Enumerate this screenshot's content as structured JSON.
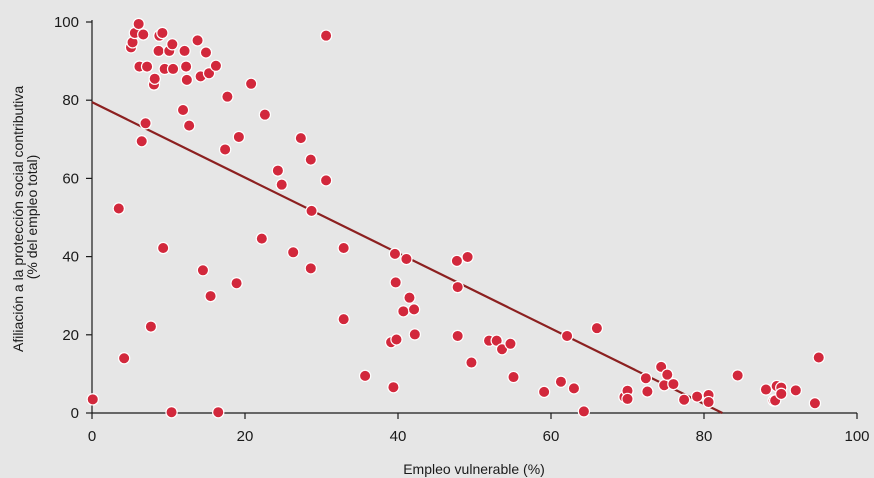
{
  "chart_data": {
    "type": "scatter",
    "title": "",
    "xlabel": "Empleo vulnerable (%)",
    "ylabel_lines": [
      "Afiliación a la protección social contributiva",
      "(% del empleo total)"
    ],
    "xlim": [
      0,
      100
    ],
    "ylim": [
      0,
      100
    ],
    "xticks": [
      0,
      20,
      40,
      60,
      80,
      100
    ],
    "yticks": [
      0,
      20,
      40,
      60,
      80,
      100
    ],
    "grid": false,
    "legend": "none",
    "colors": {
      "background": "#e6e6e6",
      "point_fill": "#d2283c",
      "point_stroke": "#ffffff",
      "trend_line": "#8c2020",
      "axis": "#1a1a1a"
    },
    "trend_line": {
      "x": [
        0,
        82.4
      ],
      "y": [
        79.5,
        0
      ]
    },
    "points": [
      [
        0.1,
        3.5
      ],
      [
        3.5,
        52.3
      ],
      [
        4.2,
        14
      ],
      [
        5.1,
        93.5
      ],
      [
        5.3,
        94.8
      ],
      [
        5.6,
        97.2
      ],
      [
        6.1,
        99.5
      ],
      [
        6.2,
        88.6
      ],
      [
        6.5,
        69.5
      ],
      [
        6.7,
        96.8
      ],
      [
        7,
        74.1
      ],
      [
        7.2,
        88.6
      ],
      [
        7.7,
        22.1
      ],
      [
        8.1,
        84
      ],
      [
        8.2,
        85.5
      ],
      [
        8.7,
        92.6
      ],
      [
        8.8,
        96.5
      ],
      [
        9.2,
        97.2
      ],
      [
        9.3,
        42.2
      ],
      [
        9.5,
        88
      ],
      [
        10.1,
        92.6
      ],
      [
        10.4,
        0.2
      ],
      [
        10.5,
        94.3
      ],
      [
        10.6,
        88
      ],
      [
        11.9,
        77.5
      ],
      [
        12.1,
        92.6
      ],
      [
        12.3,
        88.6
      ],
      [
        12.4,
        85.2
      ],
      [
        12.7,
        73.5
      ],
      [
        13.8,
        95.3
      ],
      [
        14.2,
        86.1
      ],
      [
        14.5,
        36.5
      ],
      [
        14.9,
        92.2
      ],
      [
        15.3,
        86.9
      ],
      [
        15.5,
        29.9
      ],
      [
        16.2,
        88.8
      ],
      [
        16.5,
        0.2
      ],
      [
        17.4,
        67.4
      ],
      [
        17.7,
        80.9
      ],
      [
        18.9,
        33.2
      ],
      [
        19.2,
        70.6
      ],
      [
        20.8,
        84.2
      ],
      [
        22.2,
        44.6
      ],
      [
        22.6,
        76.3
      ],
      [
        24.3,
        62
      ],
      [
        24.8,
        58.4
      ],
      [
        26.3,
        41.1
      ],
      [
        27.3,
        70.3
      ],
      [
        28.6,
        64.8
      ],
      [
        28.6,
        37
      ],
      [
        28.7,
        51.7
      ],
      [
        30.6,
        59.5
      ],
      [
        30.6,
        96.5
      ],
      [
        32.9,
        42.2
      ],
      [
        32.9,
        24
      ],
      [
        35.7,
        9.5
      ],
      [
        39.1,
        18.1
      ],
      [
        39.4,
        6.6
      ],
      [
        39.6,
        40.7
      ],
      [
        39.7,
        33.4
      ],
      [
        39.8,
        18.8
      ],
      [
        40.7,
        26
      ],
      [
        41.1,
        39.4
      ],
      [
        41.5,
        29.5
      ],
      [
        42.1,
        26.5
      ],
      [
        42.2,
        20.1
      ],
      [
        47.7,
        38.9
      ],
      [
        47.8,
        19.7
      ],
      [
        47.8,
        32.2
      ],
      [
        49.1,
        39.9
      ],
      [
        49.6,
        12.9
      ],
      [
        51.9,
        18.5
      ],
      [
        52.9,
        18.5
      ],
      [
        53.6,
        16.3
      ],
      [
        54.7,
        17.7
      ],
      [
        55.1,
        9.2
      ],
      [
        59.1,
        5.4
      ],
      [
        61.3,
        8
      ],
      [
        62.1,
        19.7
      ],
      [
        63,
        6.3
      ],
      [
        64.3,
        0.4
      ],
      [
        66,
        21.7
      ],
      [
        69.6,
        4.1
      ],
      [
        70,
        5.7
      ],
      [
        70,
        3.6
      ],
      [
        72.4,
        8.9
      ],
      [
        72.6,
        5.5
      ],
      [
        74.4,
        11.8
      ],
      [
        74.8,
        7.1
      ],
      [
        75.2,
        9.8
      ],
      [
        76,
        7.4
      ],
      [
        77.4,
        3.4
      ],
      [
        79.1,
        4.2
      ],
      [
        80.6,
        4.6
      ],
      [
        80.6,
        2.8
      ],
      [
        84.4,
        9.6
      ],
      [
        88.1,
        6
      ],
      [
        89.1,
        3.2
      ],
      [
        89.3,
        3.2
      ],
      [
        89.5,
        6.9
      ],
      [
        90.1,
        6.5
      ],
      [
        90.1,
        4.9
      ],
      [
        92,
        5.8
      ],
      [
        94.5,
        2.5
      ],
      [
        95,
        14.2
      ]
    ]
  }
}
